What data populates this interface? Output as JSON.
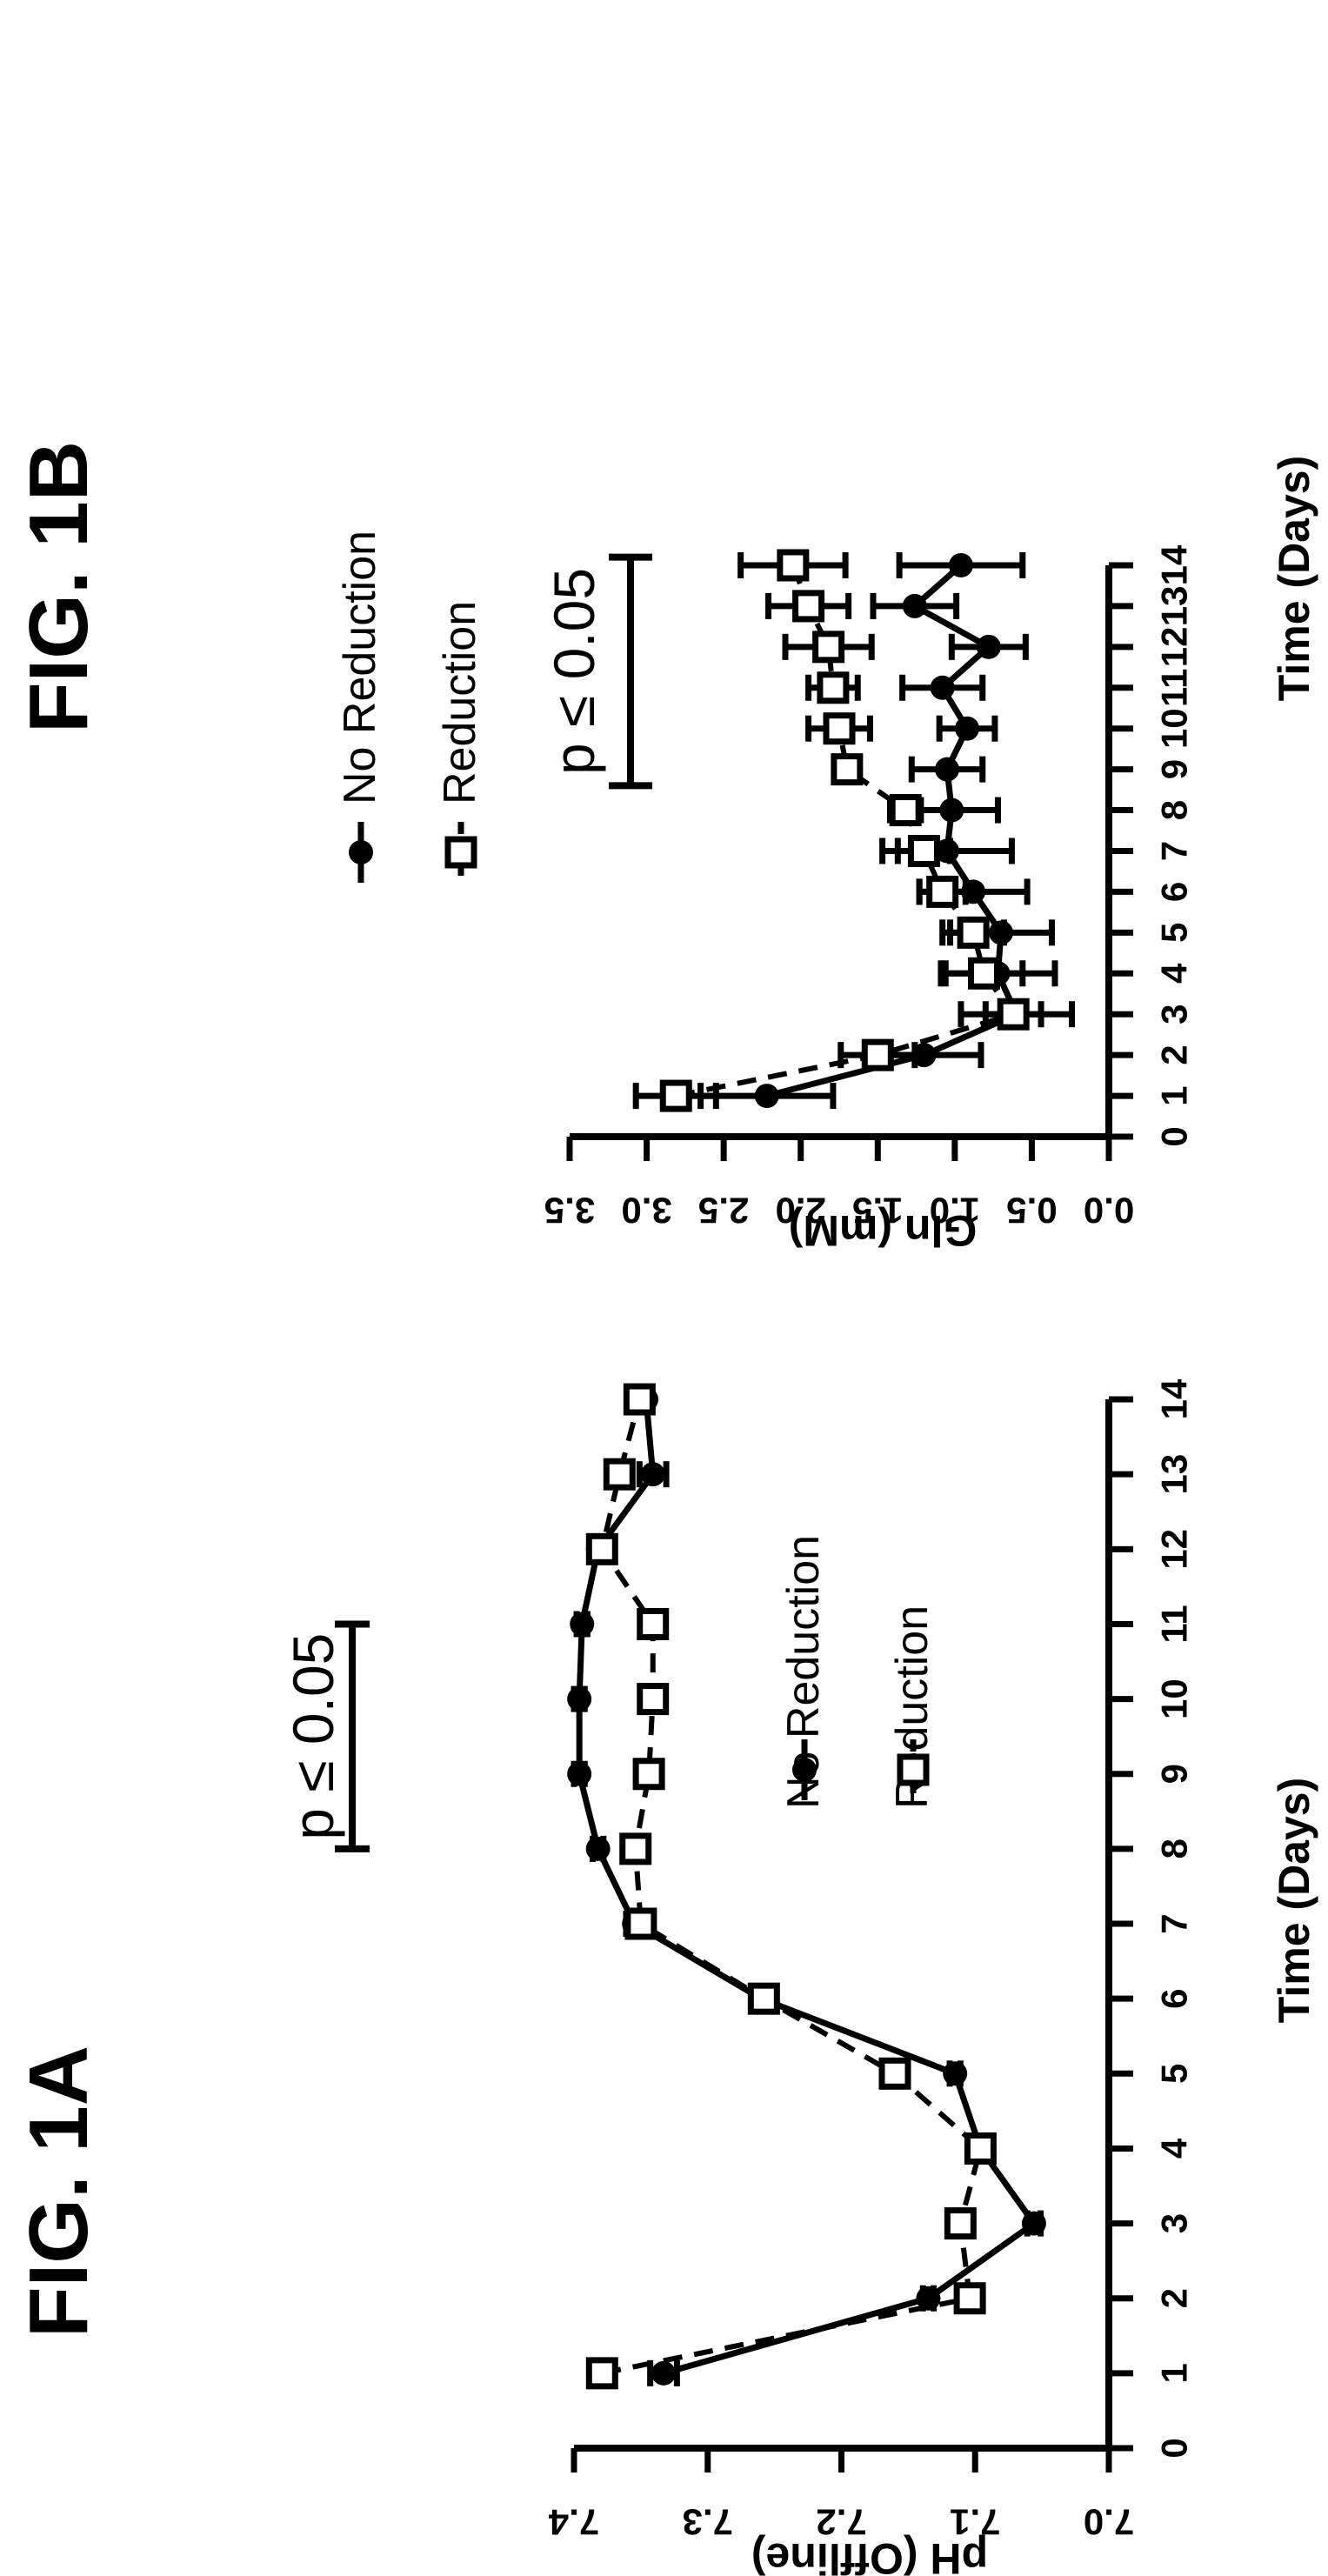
{
  "chart_data": [
    {
      "figure_label": "FIG. 1A",
      "type": "line",
      "xlabel": "Time (Days)",
      "ylabel": "pH  (Offline)",
      "xlim": [
        0,
        14
      ],
      "ylim": [
        7.0,
        7.4
      ],
      "x_ticks": [
        "0",
        "1",
        "2",
        "3",
        "4",
        "5",
        "6",
        "7",
        "8",
        "9",
        "10",
        "11",
        "12",
        "13",
        "14"
      ],
      "y_ticks": [
        "7.0",
        "7.1",
        "7.2",
        "7.3",
        "7.4"
      ],
      "x": [
        1,
        2,
        3,
        4,
        5,
        6,
        7,
        8,
        9,
        10,
        11,
        12,
        13,
        14
      ],
      "series": [
        {
          "name": "No Reduction",
          "marker": "filled-circle",
          "line": "solid",
          "values": [
            7.333,
            7.135,
            7.056,
            7.096,
            7.115,
            7.26,
            7.355,
            7.382,
            7.396,
            7.396,
            7.394,
            7.382,
            7.341,
            7.346
          ],
          "errors": [
            0.01,
            0.004,
            0.005,
            0.006,
            0.004,
            0.004,
            0.006,
            0.004,
            0.004,
            0.004,
            0.004,
            0.005,
            0.01,
            0.004
          ]
        },
        {
          "name": "Reduction",
          "marker": "open-square",
          "line": "dashed",
          "values": [
            7.379,
            7.104,
            7.111,
            7.096,
            7.16,
            7.258,
            7.35,
            7.354,
            7.344,
            7.341,
            7.341,
            7.379,
            7.366,
            7.351
          ],
          "errors": [
            0.005,
            0.005,
            0.006,
            0.006,
            0.004,
            0.004,
            0.005,
            0.004,
            0.005,
            0.005,
            0.005,
            0.004,
            0.004,
            0.004
          ]
        }
      ],
      "annotation": {
        "text": "p ≤ 0.05",
        "x_range": [
          8,
          11
        ]
      },
      "legend_position": "top-right"
    },
    {
      "figure_label": "FIG. 1B",
      "type": "line",
      "xlabel": "Time (Days)",
      "ylabel": "Gln  (mM)",
      "xlim": [
        0,
        14
      ],
      "ylim": [
        0.0,
        3.5
      ],
      "x_ticks": [
        "0",
        "1",
        "2",
        "3",
        "4",
        "5",
        "6",
        "7",
        "8",
        "9",
        "10",
        "11",
        "12",
        "13",
        "14"
      ],
      "y_ticks": [
        "0.0",
        "0.5",
        "1.0",
        "1.5",
        "2.0",
        "2.5",
        "3.0",
        "3.5"
      ],
      "x": [
        1,
        2,
        3,
        4,
        5,
        6,
        7,
        8,
        9,
        10,
        11,
        12,
        13,
        14
      ],
      "series": [
        {
          "name": "No Reduction",
          "marker": "filled-circle",
          "line": "solid",
          "values": [
            2.22,
            1.2,
            0.6,
            0.72,
            0.7,
            0.88,
            1.05,
            1.02,
            1.05,
            0.92,
            1.08,
            0.78,
            1.26,
            0.96
          ],
          "errors": [
            0.43,
            0.37,
            0.36,
            0.37,
            0.33,
            0.35,
            0.42,
            0.3,
            0.23,
            0.18,
            0.26,
            0.24,
            0.27,
            0.4
          ]
        },
        {
          "name": "Reduction",
          "marker": "open-square",
          "line": "dashed",
          "values": [
            2.81,
            1.5,
            0.62,
            0.81,
            0.88,
            1.08,
            1.2,
            1.32,
            1.7,
            1.75,
            1.79,
            1.82,
            1.95,
            2.05
          ],
          "errors": [
            0.26,
            0.24,
            0.18,
            0.25,
            0.2,
            0.15,
            0.17,
            0.1,
            0.07,
            0.2,
            0.16,
            0.28,
            0.26,
            0.34
          ]
        }
      ],
      "annotation": {
        "text": "p ≤ 0.05",
        "x_range": [
          8.6,
          14.2
        ]
      },
      "legend_position": "top-left"
    }
  ]
}
